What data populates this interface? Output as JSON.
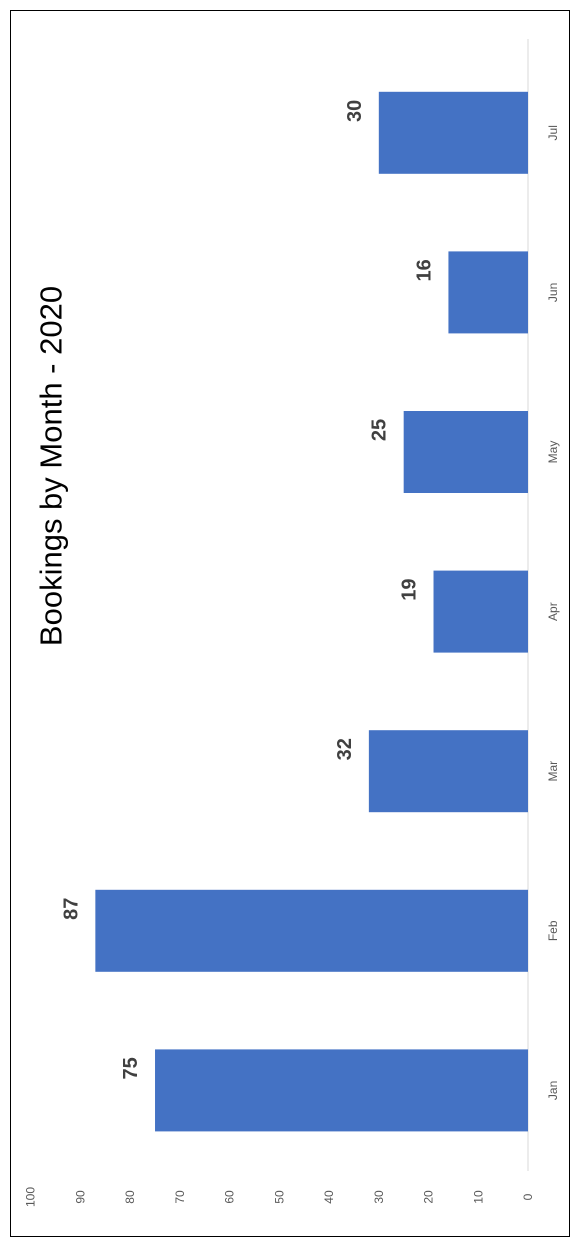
{
  "chart_data": {
    "type": "bar",
    "orientation": "rotated-90-clockwise",
    "title": "Bookings by Month - 2020",
    "categories": [
      "Jan",
      "Feb",
      "Mar",
      "Apr",
      "May",
      "Jun",
      "Jul"
    ],
    "values": [
      75,
      87,
      32,
      19,
      25,
      16,
      30
    ],
    "y_ticks": [
      0,
      10,
      20,
      30,
      40,
      50,
      60,
      70,
      80,
      90,
      100
    ],
    "ylim": [
      0,
      100
    ],
    "xlabel": "",
    "ylabel": "",
    "grid": false,
    "legend": "none",
    "colors": {
      "bar": "#4472C4",
      "axis": "#D9D9D9"
    }
  }
}
